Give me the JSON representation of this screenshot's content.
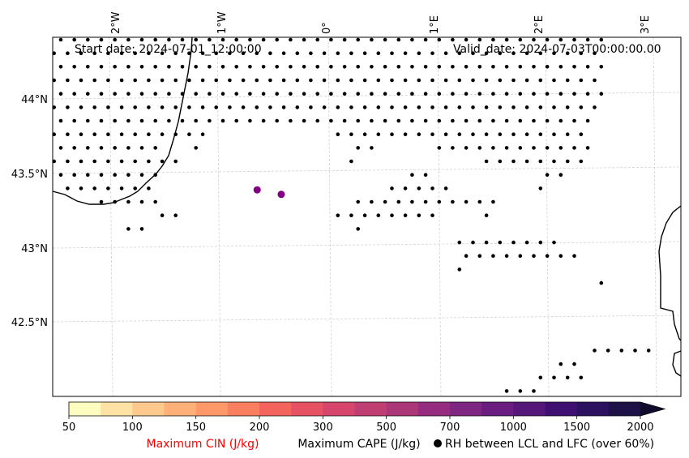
{
  "chart_data": {
    "type": "scatter",
    "title_left": "Start date: 2024-07-01_12:00:00",
    "title_right": "Valid_date: 2024-07-03T00:00:00.00",
    "lon_ticks": [
      "2°W",
      "1°W",
      "0°",
      "1°E",
      "2°E",
      "3°E"
    ],
    "lat_ticks": [
      "44°N",
      "43.5°N",
      "43°N",
      "42.5°N"
    ],
    "colorbar": {
      "label": "Maximum CAPE (J/kg)",
      "tick_labels": [
        "50",
        "100",
        "150",
        "200",
        "300",
        "500",
        "700",
        "1000",
        "1500",
        "2000"
      ],
      "colors": [
        "#fcfdbf",
        "#fde2a3",
        "#fec98d",
        "#feb078",
        "#fd9869",
        "#fa7f5e",
        "#f3655c",
        "#e75263",
        "#d6456c",
        "#c03f73",
        "#ab3778",
        "#952c80",
        "#7f2582",
        "#6a1c81",
        "#551779",
        "#3f0f72",
        "#2c1160",
        "#1d1147",
        "#0f0c2e"
      ]
    },
    "cin_label": "Maximum CIN (J/kg)",
    "cin_label_color": "#ff0000",
    "rh_legend": "RH between LCL and LFC (over 60%)",
    "cin_points": [
      {
        "lon": -0.65,
        "lat": 43.39
      },
      {
        "lon": -0.43,
        "lat": 43.36
      }
    ],
    "cin_point_color": "#800080"
  }
}
